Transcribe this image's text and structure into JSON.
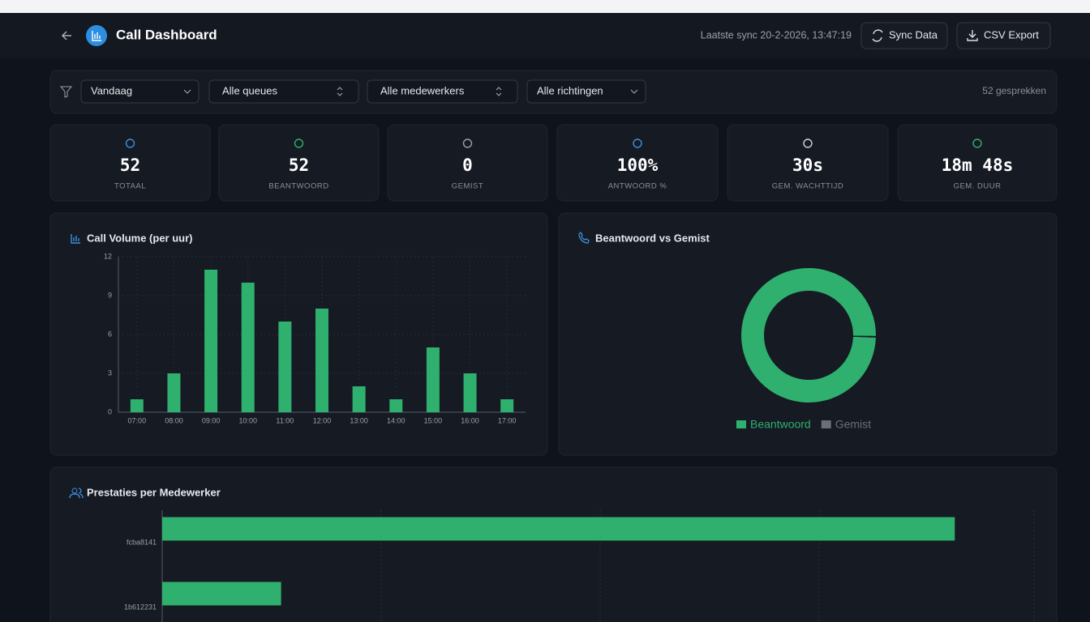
{
  "header": {
    "title": "Call Dashboard",
    "last_sync": "Laatste sync 20-2-2026, 13:47:19",
    "buttons": [
      "Sync Data",
      "CSV Export"
    ]
  },
  "filters": {
    "selects": [
      "Vandaag",
      "Alle queues",
      "Alle medewerkers",
      "Alle richtingen"
    ],
    "count": "52 gesprekken"
  },
  "stats": [
    {
      "value": "52",
      "label": "TOTAAL"
    },
    {
      "value": "52",
      "label": "BEANTWOORD"
    },
    {
      "value": "0",
      "label": "GEMIST"
    },
    {
      "value": "100%",
      "label": "ANTWOORD %"
    },
    {
      "value": "30s",
      "label": "GEM. WACHTTIJD"
    },
    {
      "value": "18m 48s",
      "label": "GEM. DUUR"
    }
  ],
  "call_volume": {
    "type": "bar",
    "title": "Call Volume (per uur)",
    "categories": [
      "07:00",
      "08:00",
      "09:00",
      "10:00",
      "11:00",
      "12:00",
      "13:00",
      "14:00",
      "15:00",
      "16:00",
      "17:00"
    ],
    "values": [
      1,
      3,
      11,
      10,
      7,
      8,
      2,
      1,
      5,
      3,
      1
    ],
    "color": "#2fb06e",
    "ylim": [
      0,
      12
    ],
    "yticks": [
      0,
      3,
      6,
      9,
      12
    ],
    "grid": true
  },
  "answered_vs_missed": {
    "type": "pie",
    "title": "Beantwoord vs Gemist",
    "categories": [
      "Beantwoord",
      "Gemist"
    ],
    "values": [
      52,
      0
    ],
    "colors": [
      "#2fb06e",
      "#6b6f78"
    ]
  },
  "agent_performance": {
    "type": "bar",
    "orientation": "horizontal",
    "title": "Prestaties per Medewerker",
    "categories": [
      "fcba8141",
      "1b612231"
    ],
    "values": [
      40,
      6
    ],
    "color": "#2fb06e",
    "xlim": [
      0,
      44
    ]
  }
}
